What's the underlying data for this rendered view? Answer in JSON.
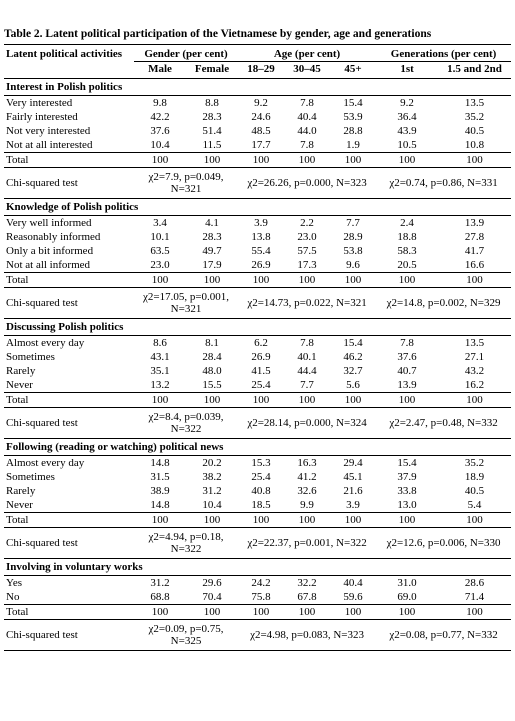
{
  "title": "Table 2. Latent political participation of the Vietnamese by gender, age and generations",
  "table": {
    "header": {
      "label": "Latent political activities",
      "groups": [
        "Gender (per cent)",
        "Age (per cent)",
        "Generations (per cent)"
      ],
      "columns": [
        "Male",
        "Female",
        "18–29",
        "30–45",
        "45+",
        "1st",
        "1.5 and 2nd"
      ]
    },
    "sections": [
      {
        "heading": "Interest in Polish politics",
        "rows": [
          {
            "label": "Very interested",
            "values": [
              "9.8",
              "8.8",
              "9.2",
              "7.8",
              "15.4",
              "9.2",
              "13.5"
            ]
          },
          {
            "label": "Fairly interested",
            "values": [
              "42.2",
              "28.3",
              "24.6",
              "40.4",
              "53.9",
              "36.4",
              "35.2"
            ]
          },
          {
            "label": "Not very interested",
            "values": [
              "37.6",
              "51.4",
              "48.5",
              "44.0",
              "28.8",
              "43.9",
              "40.5"
            ]
          },
          {
            "label": "Not at all interested",
            "values": [
              "10.4",
              "11.5",
              "17.7",
              "7.8",
              "1.9",
              "10.5",
              "10.8"
            ]
          }
        ],
        "total": {
          "label": "Total",
          "values": [
            "100",
            "100",
            "100",
            "100",
            "100",
            "100",
            "100"
          ]
        },
        "test": {
          "label": "Chi-squared test",
          "values": [
            "χ2=7.9, p=0.049, N=321",
            "χ2=26.26, p=0.000, N=323",
            "χ2=0.74, p=0.86, N=331"
          ]
        }
      },
      {
        "heading": "Knowledge of Polish politics",
        "rows": [
          {
            "label": "Very well informed",
            "values": [
              "3.4",
              "4.1",
              "3.9",
              "2.2",
              "7.7",
              "2.4",
              "13.9"
            ]
          },
          {
            "label": "Reasonably informed",
            "values": [
              "10.1",
              "28.3",
              "13.8",
              "23.0",
              "28.9",
              "18.8",
              "27.8"
            ]
          },
          {
            "label": "Only a bit informed",
            "values": [
              "63.5",
              "49.7",
              "55.4",
              "57.5",
              "53.8",
              "58.3",
              "41.7"
            ]
          },
          {
            "label": "Not at all informed",
            "values": [
              "23.0",
              "17.9",
              "26.9",
              "17.3",
              "9.6",
              "20.5",
              "16.6"
            ]
          }
        ],
        "total": {
          "label": "Total",
          "values": [
            "100",
            "100",
            "100",
            "100",
            "100",
            "100",
            "100"
          ]
        },
        "test": {
          "label": "Chi-squared test",
          "values": [
            "χ2=17.05, p=0.001, N=321",
            "χ2=14.73, p=0.022, N=321",
            "χ2=14.8, p=0.002, N=329"
          ]
        }
      },
      {
        "heading": "Discussing Polish politics",
        "rows": [
          {
            "label": "Almost every day",
            "values": [
              "8.6",
              "8.1",
              "6.2",
              "7.8",
              "15.4",
              "7.8",
              "13.5"
            ]
          },
          {
            "label": "Sometimes",
            "values": [
              "43.1",
              "28.4",
              "26.9",
              "40.1",
              "46.2",
              "37.6",
              "27.1"
            ]
          },
          {
            "label": "Rarely",
            "values": [
              "35.1",
              "48.0",
              "41.5",
              "44.4",
              "32.7",
              "40.7",
              "43.2"
            ]
          },
          {
            "label": "Never",
            "values": [
              "13.2",
              "15.5",
              "25.4",
              "7.7",
              "5.6",
              "13.9",
              "16.2"
            ]
          }
        ],
        "total": {
          "label": "Total",
          "values": [
            "100",
            "100",
            "100",
            "100",
            "100",
            "100",
            "100"
          ]
        },
        "test": {
          "label": "Chi-squared test",
          "values": [
            "χ2=8.4, p=0.039, N=322",
            "χ2=28.14, p=0.000, N=324",
            "χ2=2.47, p=0.48, N=332"
          ]
        }
      },
      {
        "heading": "Following (reading or watching) political news",
        "rows": [
          {
            "label": "Almost every day",
            "values": [
              "14.8",
              "20.2",
              "15.3",
              "16.3",
              "29.4",
              "15.4",
              "35.2"
            ]
          },
          {
            "label": "Sometimes",
            "values": [
              "31.5",
              "38.2",
              "25.4",
              "41.2",
              "45.1",
              "37.9",
              "18.9"
            ]
          },
          {
            "label": "Rarely",
            "values": [
              "38.9",
              "31.2",
              "40.8",
              "32.6",
              "21.6",
              "33.8",
              "40.5"
            ]
          },
          {
            "label": "Never",
            "values": [
              "14.8",
              "10.4",
              "18.5",
              "9.9",
              "3.9",
              "13.0",
              "5.4"
            ]
          }
        ],
        "total": {
          "label": "Total",
          "values": [
            "100",
            "100",
            "100",
            "100",
            "100",
            "100",
            "100"
          ]
        },
        "test": {
          "label": "Chi-squared test",
          "values": [
            "χ2=4.94, p=0.18, N=322",
            "χ2=22.37, p=0.001, N=322",
            "χ2=12.6, p=0.006, N=330"
          ]
        }
      },
      {
        "heading": "Involving in voluntary works",
        "rows": [
          {
            "label": "Yes",
            "values": [
              "31.2",
              "29.6",
              "24.2",
              "32.2",
              "40.4",
              "31.0",
              "28.6"
            ]
          },
          {
            "label": "No",
            "values": [
              "68.8",
              "70.4",
              "75.8",
              "67.8",
              "59.6",
              "69.0",
              "71.4"
            ]
          }
        ],
        "total": {
          "label": "Total",
          "values": [
            "100",
            "100",
            "100",
            "100",
            "100",
            "100",
            "100"
          ]
        },
        "test": {
          "label": "Chi-squared test",
          "values": [
            "χ2=0.09, p=0.75, N=325",
            "χ2=4.98, p=0.083, N=323",
            "χ2=0.08, p=0.77, N=332"
          ]
        }
      }
    ]
  }
}
